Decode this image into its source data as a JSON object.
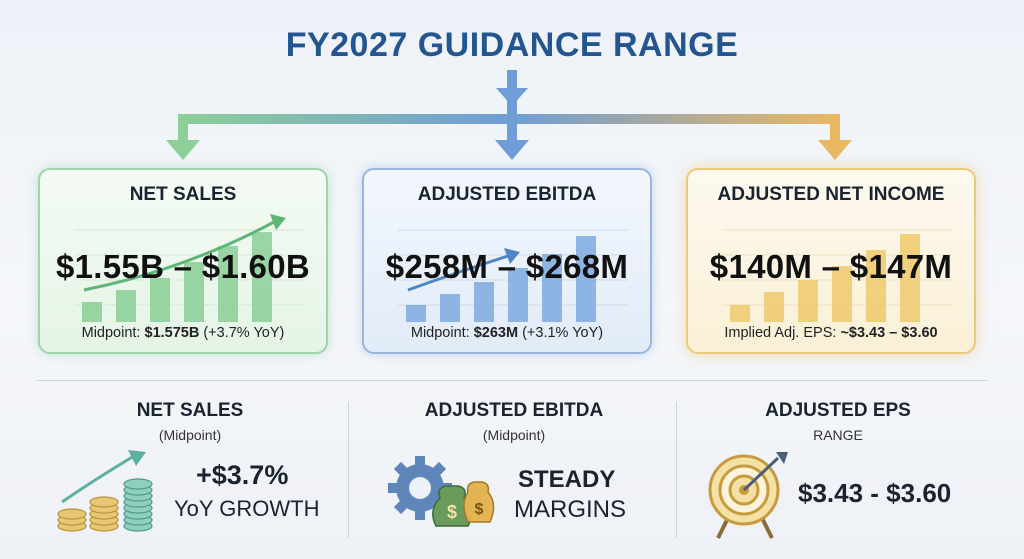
{
  "title": "FY2027 GUIDANCE RANGE",
  "colors": {
    "title": "#23568f",
    "green": "#7fc48e",
    "blue": "#6f9dd6",
    "gold": "#e8b95a"
  },
  "cards": [
    {
      "heading": "NET SALES",
      "range": "$1.55B – $1.60B",
      "footnote_label": "Midpoint: ",
      "footnote_value": "$1.575B",
      "footnote_extra": " (+3.7% YoY)",
      "accent": "green"
    },
    {
      "heading": "ADJUSTED EBITDA",
      "range": "$258M – $268M",
      "footnote_label": "Midpoint: ",
      "footnote_value": "$263M",
      "footnote_extra": " (+3.1% YoY)",
      "accent": "blue"
    },
    {
      "heading": "ADJUSTED NET INCOME",
      "range": "$140M – $147M",
      "footnote_label": "Implied Adj. EPS: ",
      "footnote_value": "~$3.43 – $3.60",
      "footnote_extra": "",
      "accent": "gold"
    }
  ],
  "bottom": [
    {
      "heading": "NET SALES",
      "sub": "(Midpoint)",
      "line1": "+$3.7%",
      "line2": "YoY GROWTH",
      "icon": "coins-growth-icon"
    },
    {
      "heading": "ADJUSTED EBITDA",
      "sub": "(Midpoint)",
      "line1": "STEADY",
      "line2": "MARGINS",
      "icon": "gear-money-bags-icon"
    },
    {
      "heading": "ADJUSTED EPS",
      "sub": "RANGE",
      "line1": "$3.43 - $3.60",
      "icon": "target-icon"
    }
  ]
}
